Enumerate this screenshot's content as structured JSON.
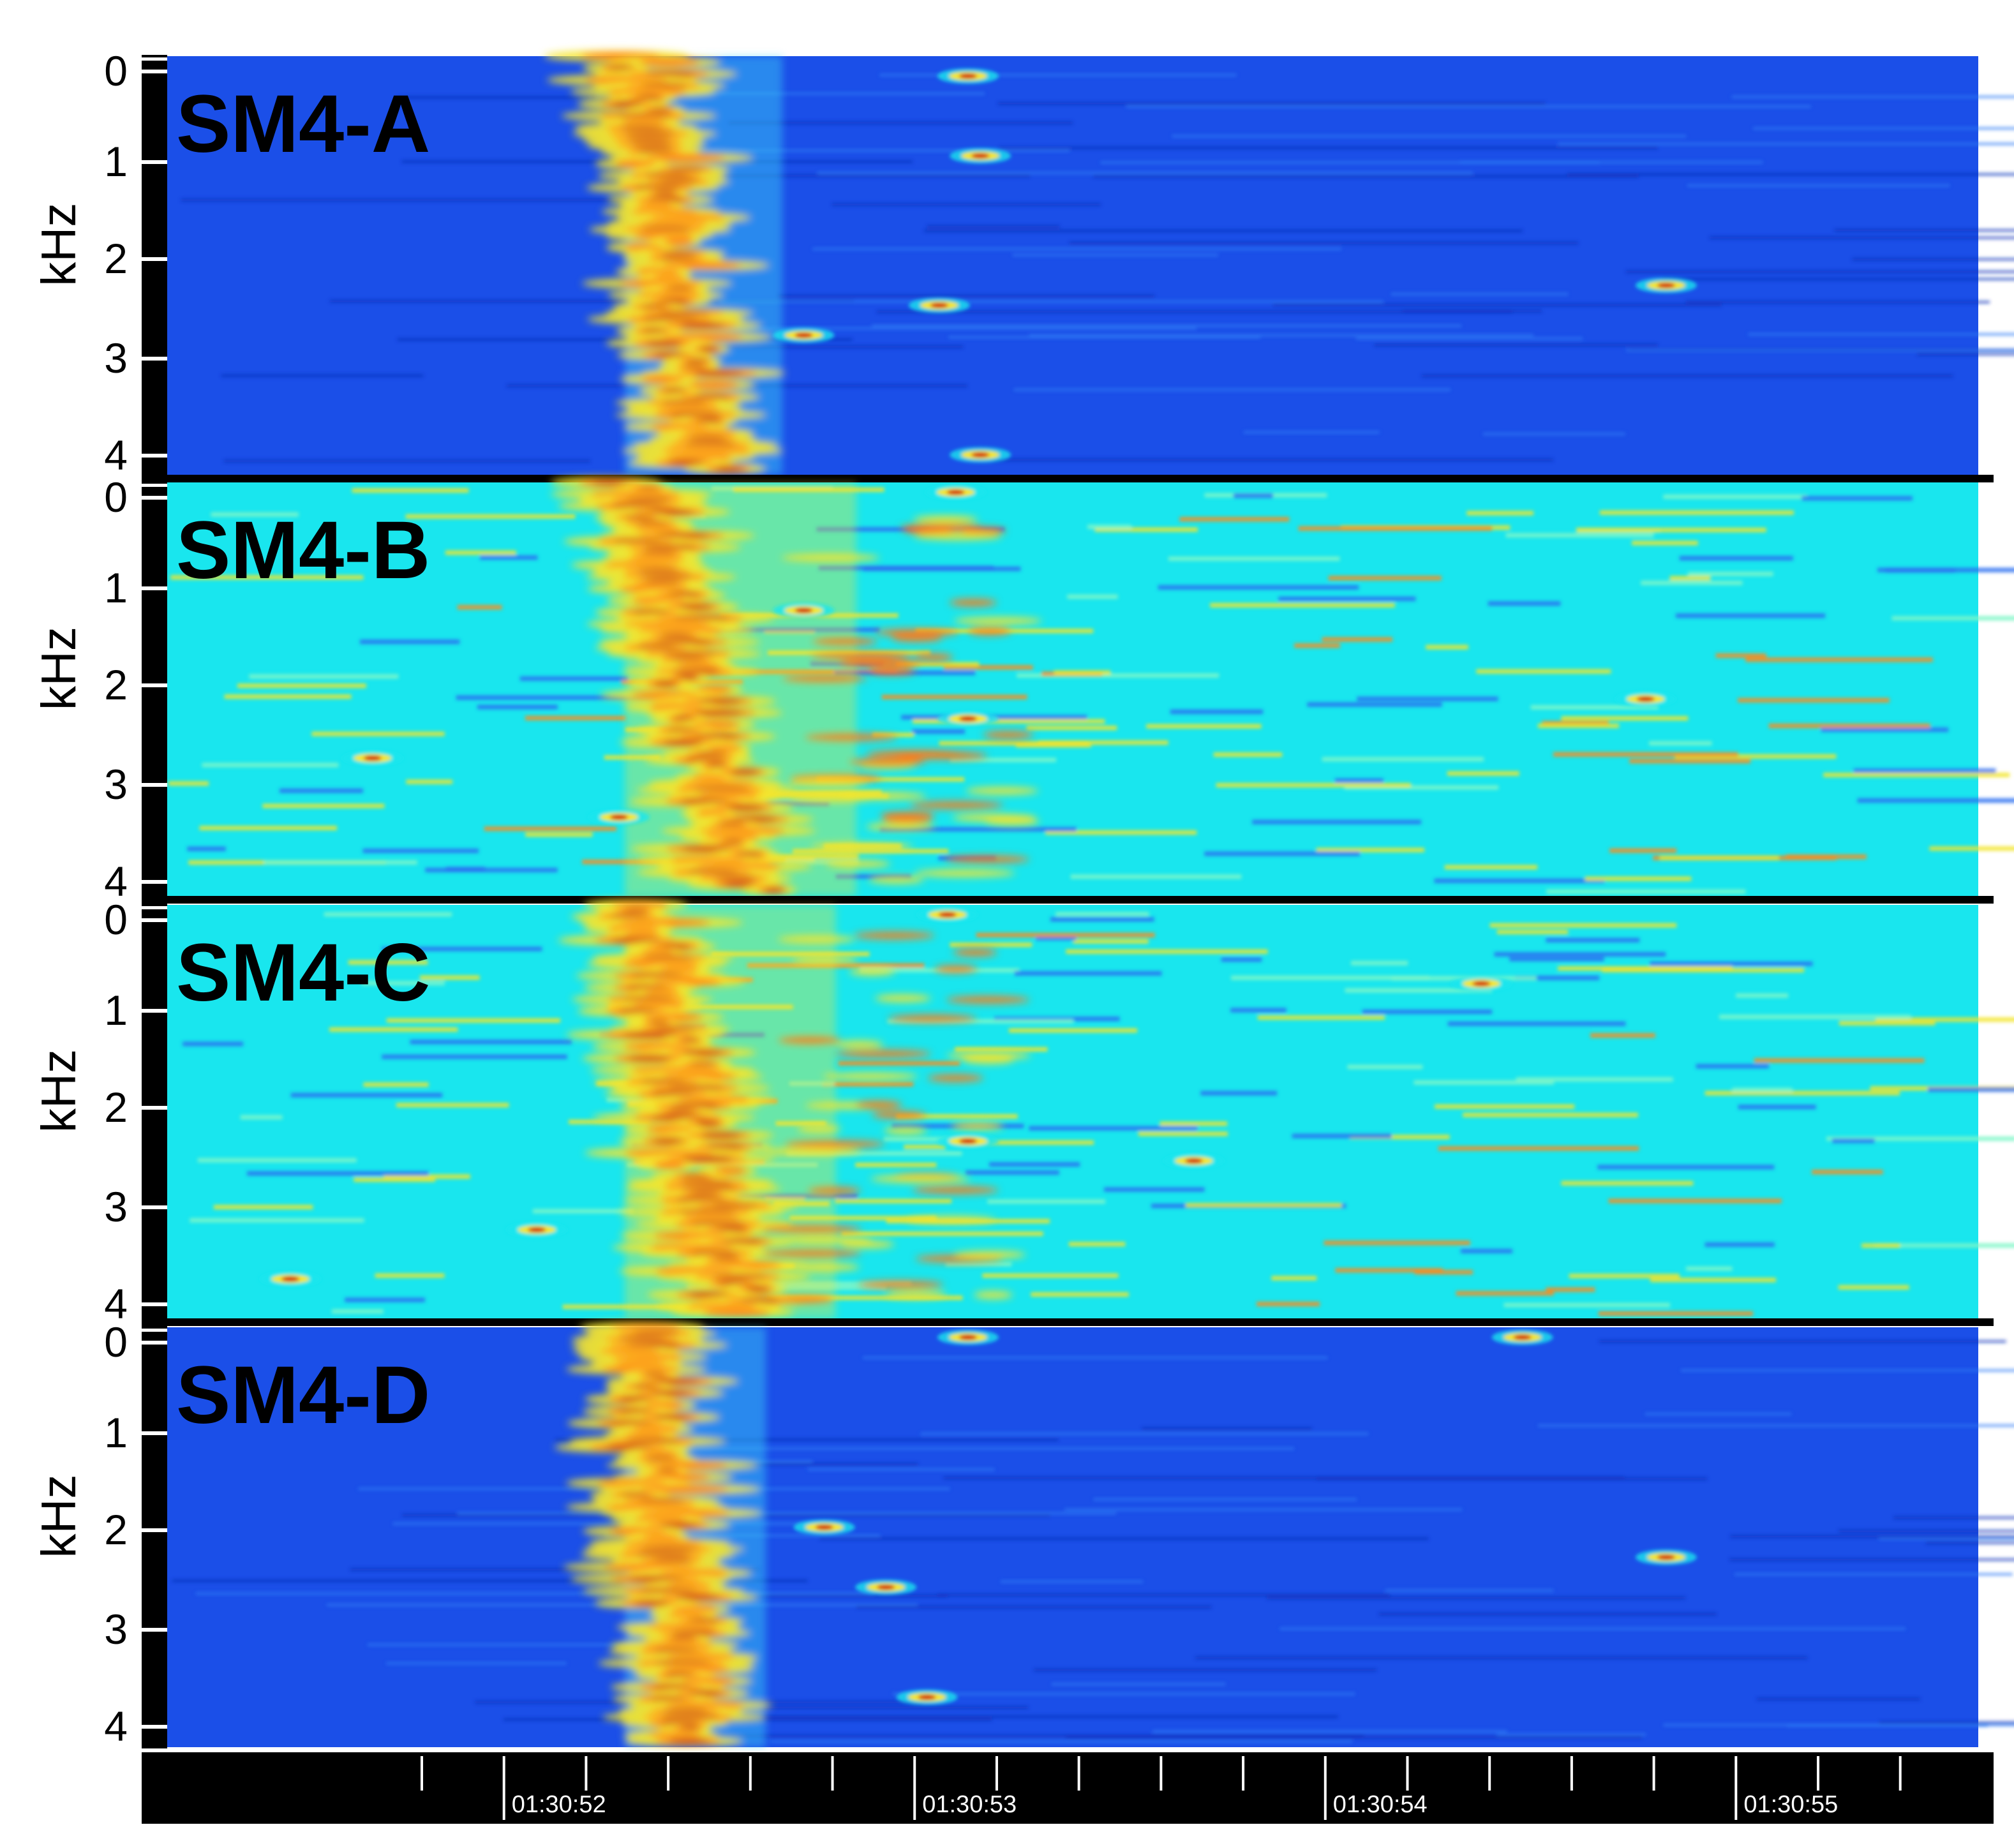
{
  "chart_data": {
    "type": "heatmap",
    "title": "",
    "colormap": "jet",
    "colors": {
      "background_blue": "#1b4fe8",
      "background_cyan": "#19e6ee",
      "hot_red": "#d11515",
      "yellow": "#f2e52c",
      "frame": "#000000"
    },
    "panels": [
      {
        "label": "SM4-A",
        "ylabel": "kHz",
        "yticks": [
          "0",
          "1",
          "2",
          "3",
          "4"
        ],
        "ylim": [
          0,
          4.2
        ],
        "background": "blue",
        "call_start_s": 1.13,
        "call_end_s": 1.42,
        "echo_spots": [
          {
            "t": 1.95,
            "f": 0.2
          },
          {
            "t": 1.98,
            "f": 1.0
          },
          {
            "t": 1.88,
            "f": 2.5
          },
          {
            "t": 1.98,
            "f": 4.0
          },
          {
            "t": 3.65,
            "f": 2.3
          },
          {
            "t": 1.55,
            "f": 2.8
          }
        ]
      },
      {
        "label": "SM4-B",
        "ylabel": "kHz",
        "yticks": [
          "0",
          "1",
          "2",
          "3",
          "4"
        ],
        "ylim": [
          0,
          4.2
        ],
        "background": "cyan",
        "call_start_s": 1.13,
        "call_end_s": 1.6,
        "echo_spots": [
          {
            "t": 1.92,
            "f": 0.1
          },
          {
            "t": 1.55,
            "f": 1.3
          },
          {
            "t": 1.95,
            "f": 2.4
          },
          {
            "t": 3.6,
            "f": 2.2
          },
          {
            "t": 0.5,
            "f": 2.8
          },
          {
            "t": 1.1,
            "f": 3.4
          }
        ]
      },
      {
        "label": "SM4-C",
        "ylabel": "kHz",
        "yticks": [
          "0",
          "1",
          "2",
          "3",
          "4"
        ],
        "ylim": [
          0,
          4.2
        ],
        "background": "cyan",
        "call_start_s": 1.13,
        "call_end_s": 1.55,
        "echo_spots": [
          {
            "t": 1.9,
            "f": 0.1
          },
          {
            "t": 0.9,
            "f": 3.3
          },
          {
            "t": 1.95,
            "f": 2.4
          },
          {
            "t": 0.3,
            "f": 3.8
          },
          {
            "t": 2.5,
            "f": 2.6
          },
          {
            "t": 3.2,
            "f": 0.8
          }
        ]
      },
      {
        "label": "SM4-D",
        "ylabel": "kHz",
        "yticks": [
          "0",
          "1",
          "2",
          "3",
          "4"
        ],
        "ylim": [
          0,
          4.2
        ],
        "background": "blue",
        "call_start_s": 1.13,
        "call_end_s": 1.38,
        "echo_spots": [
          {
            "t": 1.95,
            "f": 0.1
          },
          {
            "t": 1.75,
            "f": 2.6
          },
          {
            "t": 1.85,
            "f": 3.7
          },
          {
            "t": 3.65,
            "f": 2.3
          },
          {
            "t": 3.3,
            "f": 0.1
          },
          {
            "t": 1.6,
            "f": 2.0
          }
        ]
      }
    ],
    "x_axis": {
      "xlim_s": [
        0,
        4.41
      ],
      "labels": [
        {
          "text": "01:30:52",
          "t": 0.82
        },
        {
          "text": "01:30:53",
          "t": 1.82
        },
        {
          "text": "01:30:54",
          "t": 2.82
        },
        {
          "text": "01:30:55",
          "t": 3.82
        }
      ],
      "minor_tick_step_s": 0.2
    }
  }
}
